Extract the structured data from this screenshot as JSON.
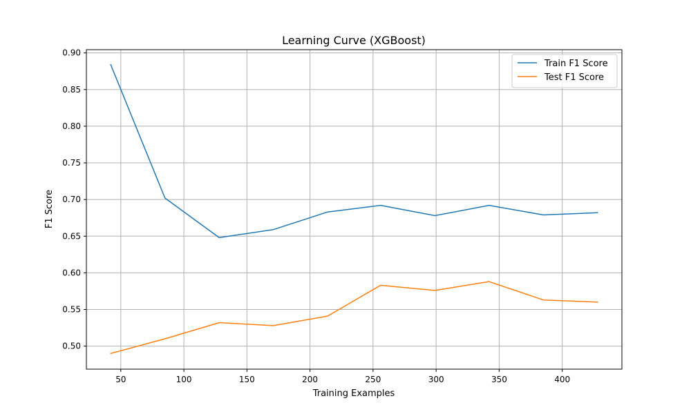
{
  "chart_data": {
    "type": "line",
    "title": "Learning Curve (XGBoost)",
    "xlabel": "Training Examples",
    "ylabel": "F1 Score",
    "xlim": [
      22.7,
      447.3
    ],
    "ylim": [
      0.4686,
      0.9044
    ],
    "xticks": [
      50,
      100,
      150,
      200,
      250,
      300,
      350,
      400
    ],
    "yticks": [
      0.5,
      0.55,
      0.6,
      0.65,
      0.7,
      0.75,
      0.8,
      0.85,
      0.9
    ],
    "grid": true,
    "legend_position": "upper right",
    "x": [
      42,
      85,
      128,
      171,
      214,
      256,
      299,
      342,
      385,
      428
    ],
    "series": [
      {
        "name": "Train F1 Score",
        "color": "#1f77b4",
        "values": [
          0.884,
          0.702,
          0.648,
          0.659,
          0.683,
          0.692,
          0.678,
          0.692,
          0.679,
          0.682
        ]
      },
      {
        "name": "Test F1 Score",
        "color": "#ff7f0e",
        "values": [
          0.49,
          0.51,
          0.532,
          0.528,
          0.541,
          0.583,
          0.576,
          0.588,
          0.563,
          0.56
        ]
      }
    ]
  }
}
